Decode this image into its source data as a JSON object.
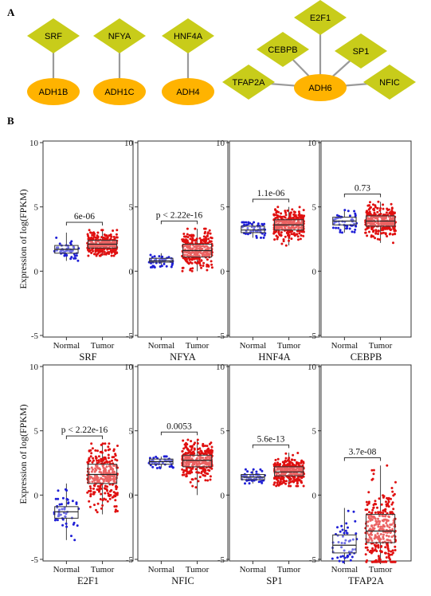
{
  "panel_a": {
    "label": "A",
    "networks": [
      {
        "target": "ADH1B",
        "factors": [
          "SRF"
        ]
      },
      {
        "target": "ADH1C",
        "factors": [
          "NFYA"
        ]
      },
      {
        "target": "ADH4",
        "factors": [
          "HNF4A"
        ]
      },
      {
        "target": "ADH6",
        "factors": [
          "E2F1",
          "CEBPB",
          "SP1",
          "TFAP2A",
          "NFIC"
        ]
      }
    ],
    "colors": {
      "factor_diamond": "#c8cc1a",
      "target_ellipse": "#ffb300",
      "edge": "#9a9a9a"
    }
  },
  "panel_b": {
    "label": "B",
    "ylabel": "Expression of log(FPKM)",
    "colors": {
      "normal": "#1f1fd6",
      "tumor": "#e01010"
    },
    "groups": [
      "Normal",
      "Tumor"
    ],
    "chart_data": {
      "type": "boxplot",
      "ylim": [
        -5,
        10
      ],
      "yticks": [
        -5,
        0,
        5,
        10
      ],
      "panels": [
        {
          "gene": "SRF",
          "pvalue": "6e-06",
          "normal": {
            "q1": 1.4,
            "median": 1.7,
            "q3": 2.0,
            "min": 0.8,
            "max": 3.0,
            "n": 50
          },
          "tumor": {
            "q1": 1.8,
            "median": 2.1,
            "q3": 2.4,
            "min": 1.2,
            "max": 3.2,
            "n": 300
          }
        },
        {
          "gene": "NFYA",
          "pvalue": "p < 2.22e-16",
          "normal": {
            "q1": 0.7,
            "median": 0.8,
            "q3": 1.0,
            "min": 0.3,
            "max": 1.4,
            "n": 50
          },
          "tumor": {
            "q1": 1.1,
            "median": 1.6,
            "q3": 2.1,
            "min": 0.0,
            "max": 3.3,
            "n": 300
          }
        },
        {
          "gene": "HNF4A",
          "pvalue": "1.1e-06",
          "normal": {
            "q1": 3.0,
            "median": 3.2,
            "q3": 3.5,
            "min": 2.6,
            "max": 3.8,
            "n": 50
          },
          "tumor": {
            "q1": 3.2,
            "median": 3.6,
            "q3": 4.0,
            "min": 2.0,
            "max": 5.0,
            "n": 300
          }
        },
        {
          "gene": "CEBPB",
          "pvalue": "0.73",
          "normal": {
            "q1": 3.6,
            "median": 3.9,
            "q3": 4.2,
            "min": 3.0,
            "max": 4.8,
            "n": 50
          },
          "tumor": {
            "q1": 3.5,
            "median": 3.9,
            "q3": 4.3,
            "min": 2.2,
            "max": 5.4,
            "n": 300
          }
        },
        {
          "gene": "E2F1",
          "pvalue": "p < 2.22e-16",
          "normal": {
            "q1": -1.8,
            "median": -1.3,
            "q3": -0.9,
            "min": -3.5,
            "max": 0.9,
            "n": 50
          },
          "tumor": {
            "q1": 0.9,
            "median": 1.6,
            "q3": 2.4,
            "min": -1.5,
            "max": 4.0,
            "n": 300
          }
        },
        {
          "gene": "NFIC",
          "pvalue": "0.0053",
          "normal": {
            "q1": 2.4,
            "median": 2.6,
            "q3": 2.8,
            "min": 2.1,
            "max": 3.0,
            "n": 50
          },
          "tumor": {
            "q1": 2.2,
            "median": 2.7,
            "q3": 3.1,
            "min": 0.0,
            "max": 4.3,
            "n": 300
          }
        },
        {
          "gene": "SP1",
          "pvalue": "5.6e-13",
          "normal": {
            "q1": 1.2,
            "median": 1.4,
            "q3": 1.6,
            "min": 0.9,
            "max": 2.0,
            "n": 50
          },
          "tumor": {
            "q1": 1.5,
            "median": 1.8,
            "q3": 2.2,
            "min": 0.7,
            "max": 3.3,
            "n": 300
          }
        },
        {
          "gene": "TFAP2A",
          "pvalue": "3.7e-08",
          "normal": {
            "q1": -4.5,
            "median": -3.9,
            "q3": -3.1,
            "min": -5.2,
            "max": -1.0,
            "n": 50
          },
          "tumor": {
            "q1": -3.7,
            "median": -2.8,
            "q3": -1.5,
            "min": -5.2,
            "max": 2.3,
            "n": 300
          }
        }
      ]
    }
  }
}
